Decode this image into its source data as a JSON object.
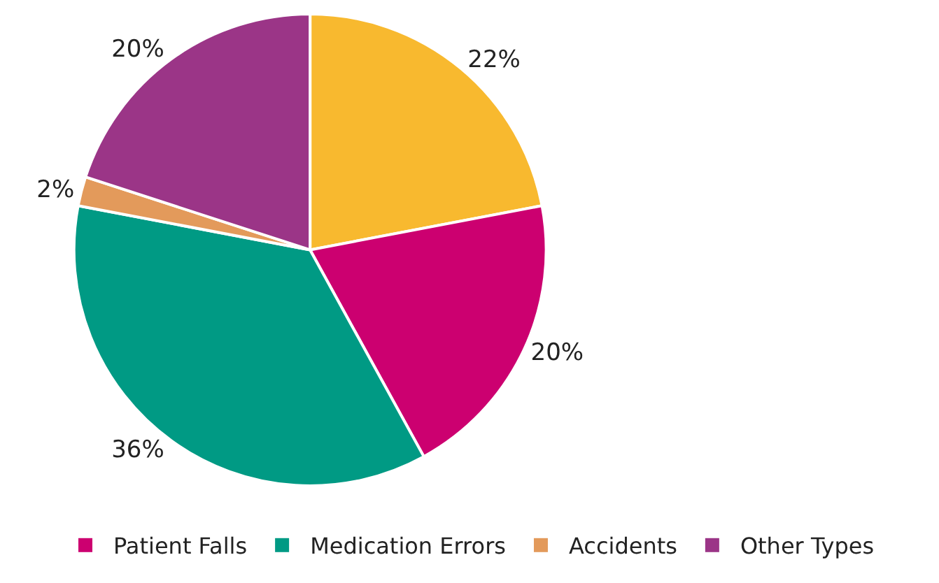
{
  "chart_data": {
    "type": "pie",
    "categories": [
      null,
      "Patient Falls",
      "Medication Errors",
      "Accidents",
      "Other Types"
    ],
    "values": [
      22,
      20,
      36,
      2,
      20
    ],
    "value_labels": [
      "22%",
      "20%",
      "36%",
      "2%",
      "20%"
    ],
    "colors": [
      "#f8b92f",
      "#cc0070",
      "#009a84",
      "#e39a5b",
      "#9b3587"
    ],
    "legend": "bottom"
  }
}
